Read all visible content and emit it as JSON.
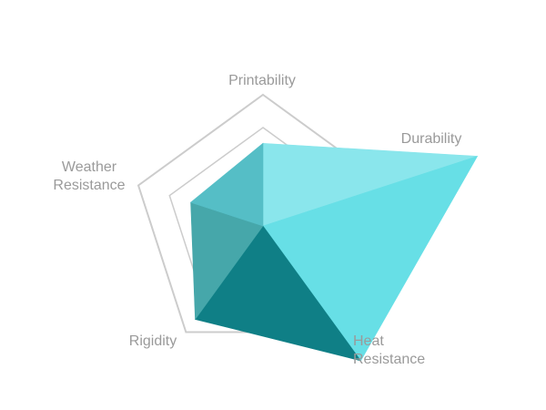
{
  "chart_data": {
    "type": "radar",
    "title": "",
    "axes": [
      {
        "key": "printability",
        "label_lines": [
          "Printability"
        ]
      },
      {
        "key": "durability",
        "label_lines": [
          "Durability"
        ]
      },
      {
        "key": "heat_resistance",
        "label_lines": [
          "Heat",
          "Resistance"
        ]
      },
      {
        "key": "rigidity",
        "label_lines": [
          "Rigidity"
        ]
      },
      {
        "key": "weather_resistance",
        "label_lines": [
          "Weather",
          "Resistance"
        ]
      }
    ],
    "values": [
      0.63,
      1.72,
      1.27,
      0.88,
      0.58
    ],
    "scale_max": 1.0,
    "grid_levels": [
      0.5,
      0.75,
      1.0
    ],
    "wedge_colors": [
      "#8ae6ec",
      "#67dfe6",
      "#0f7f86",
      "#46a7aa",
      "#55bec6"
    ],
    "grid_color": "#cccccc"
  }
}
